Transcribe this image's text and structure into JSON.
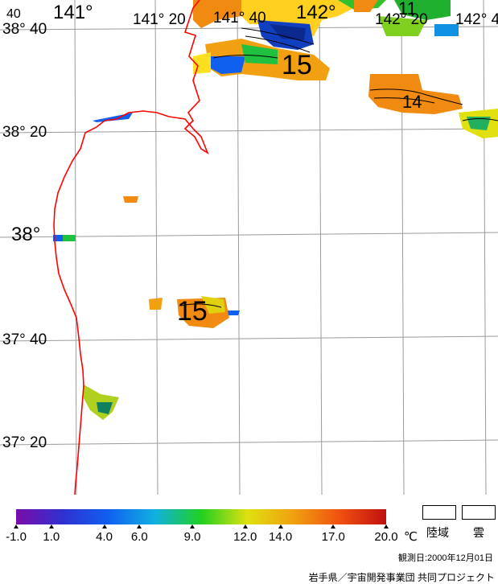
{
  "map": {
    "lat_labels": [
      "38° 40",
      "38° 20",
      "38°",
      "37° 40",
      "37° 20"
    ],
    "lon_labels": [
      "141°",
      "141° 20",
      "141° 40",
      "142°",
      "142° 20",
      "142° 4"
    ],
    "corner_label": "40",
    "contour_labels": [
      "15",
      "14",
      "11",
      "15"
    ]
  },
  "legend": {
    "ticks": [
      "-1.0",
      "1.0",
      "4.0",
      "6.0",
      "9.0",
      "12.0",
      "14.0",
      "17.0",
      "20.0"
    ],
    "unit": "℃",
    "land_label": "陸域",
    "cloud_label": "雲",
    "colors": [
      "#7a0ca8",
      "#3030d0",
      "#1060f0",
      "#10b0e0",
      "#20d020",
      "#e0e010",
      "#f0a010",
      "#f05010",
      "#c01010"
    ]
  },
  "footer": {
    "obs_date": "観測日:2000年12月01日",
    "credits": "岩手県／宇宙開発事業団 共同プロジェクト"
  }
}
